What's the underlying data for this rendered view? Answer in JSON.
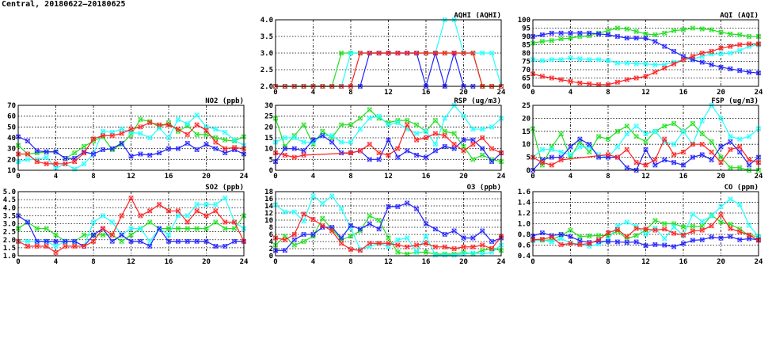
{
  "page_title": "Central, 20180622–20180625",
  "series_colors": [
    "#ff2020",
    "#20e020",
    "#2020ff",
    "#20ffff"
  ],
  "chart_data": [
    {
      "id": "aqhi",
      "type": "line",
      "title": "AQHI (AQHI)",
      "ylim": [
        2,
        4
      ],
      "yticks": [
        "2.0",
        "2.5",
        "3.0",
        "3.5",
        "4.0"
      ],
      "xlim": [
        0,
        24
      ],
      "xticks": [
        "0",
        "4",
        "8",
        "12",
        "16",
        "20",
        "24"
      ],
      "grid": true,
      "series": [
        {
          "name": "green",
          "values": [
            2,
            2,
            2,
            2,
            2,
            2,
            2,
            3,
            3,
            3,
            3,
            3,
            3,
            3,
            3,
            3,
            3,
            3,
            3,
            3,
            3,
            3,
            2,
            2,
            2
          ]
        },
        {
          "name": "cyan",
          "values": [
            2,
            2,
            2,
            2,
            2,
            2,
            2,
            2,
            3,
            3,
            3,
            3,
            3,
            3,
            3,
            3,
            3,
            3,
            4,
            4,
            3,
            3,
            3,
            3,
            2
          ]
        },
        {
          "name": "blue",
          "values": [
            null,
            null,
            null,
            null,
            null,
            null,
            null,
            null,
            null,
            2,
            3,
            3,
            3,
            3,
            3,
            3,
            2,
            3,
            2,
            3,
            2,
            2,
            null,
            null,
            null
          ]
        },
        {
          "name": "red",
          "values": [
            2,
            2,
            2,
            2,
            2,
            2,
            2,
            2,
            2,
            3,
            3,
            3,
            3,
            3,
            3,
            3,
            3,
            3,
            3,
            3,
            3,
            3,
            2,
            2,
            2
          ]
        }
      ]
    },
    {
      "id": "aqi",
      "type": "line",
      "title": "AQI (AQI)",
      "ylim": [
        60,
        100
      ],
      "yticks": [
        "60",
        "65",
        "70",
        "75",
        "80",
        "85",
        "90",
        "95",
        "100"
      ],
      "xlim": [
        0,
        24
      ],
      "xticks": [
        "0",
        "4",
        "8",
        "12",
        "16",
        "20",
        "24"
      ],
      "grid": true,
      "series": [
        {
          "name": "green",
          "values": [
            86,
            87,
            87.5,
            88.5,
            89,
            90,
            90.5,
            92,
            93.5,
            95,
            94.5,
            93,
            91.5,
            91,
            92,
            93.5,
            94,
            95,
            94.5,
            94,
            92.5,
            91.5,
            91,
            90,
            90
          ]
        },
        {
          "name": "cyan",
          "values": [
            76,
            75.5,
            76,
            76,
            77,
            76.5,
            76,
            76,
            75.5,
            74,
            74,
            73.5,
            73.5,
            73,
            73,
            74.5,
            76,
            76.5,
            78,
            79.5,
            79.5,
            80,
            81.5,
            84,
            85
          ]
        },
        {
          "name": "blue",
          "values": [
            90,
            91,
            92,
            92,
            92,
            92,
            92,
            91.5,
            91,
            90,
            89,
            89,
            89,
            87,
            84,
            81,
            78,
            76,
            74.5,
            73,
            71.5,
            70.5,
            69.5,
            68.5,
            68
          ]
        },
        {
          "name": "red",
          "values": [
            67.5,
            66,
            65,
            64,
            63,
            62,
            61.5,
            61,
            61,
            62.5,
            64,
            65,
            66,
            68.5,
            71,
            73.5,
            76,
            78,
            80,
            81,
            83,
            84,
            85,
            85.5,
            85.5
          ]
        }
      ]
    },
    {
      "id": "no2",
      "type": "line",
      "title": "NO2 (ppb)",
      "ylim": [
        10,
        70
      ],
      "yticks": [
        "10",
        "20",
        "30",
        "40",
        "50",
        "60",
        "70"
      ],
      "xlim": [
        0,
        24
      ],
      "xticks": [
        "0",
        "4",
        "8",
        "12",
        "16",
        "20",
        "24"
      ],
      "grid": true,
      "series": [
        {
          "name": "green",
          "values": [
            33,
            25,
            26,
            27,
            27,
            21,
            26,
            32,
            37,
            41,
            29,
            34,
            43,
            57,
            55,
            50,
            54,
            46,
            51,
            43,
            43,
            40,
            38,
            37,
            41
          ]
        },
        {
          "name": "cyan",
          "values": [
            18,
            20,
            20,
            22,
            12,
            16,
            11,
            16,
            25,
            46,
            45,
            48,
            45,
            44,
            40,
            49,
            40,
            57,
            53,
            61,
            50,
            48,
            45,
            38,
            33
          ]
        },
        {
          "name": "blue",
          "values": [
            41,
            37,
            28,
            27,
            27,
            21,
            21,
            27,
            25,
            29,
            30,
            35,
            23,
            25,
            24,
            26,
            30,
            30,
            35,
            29,
            34,
            30,
            26,
            29,
            25
          ]
        },
        {
          "name": "red",
          "values": [
            25,
            25,
            18,
            16,
            16,
            16,
            18,
            26,
            39,
            42,
            42,
            44,
            48,
            50,
            54,
            52,
            52,
            48,
            43,
            52,
            47,
            36,
            30,
            31,
            30
          ]
        }
      ]
    },
    {
      "id": "rsp",
      "type": "line",
      "title": "RSP (ug/m3)",
      "ylim": [
        0,
        30
      ],
      "yticks": [
        "0",
        "5",
        "10",
        "15",
        "20",
        "25",
        "30"
      ],
      "xlim": [
        0,
        24
      ],
      "xticks": [
        "0",
        "4",
        "8",
        "12",
        "16",
        "20",
        "24"
      ],
      "grid": true,
      "series": [
        {
          "name": "green",
          "values": [
            24,
            11,
            16,
            21,
            12,
            18,
            15,
            21,
            21,
            24,
            28,
            24,
            22,
            23,
            23,
            21,
            18,
            23,
            18,
            17,
            11,
            5,
            7,
            5,
            4
          ]
        },
        {
          "name": "cyan",
          "values": [
            13,
            15,
            15,
            13,
            13,
            16,
            16,
            13,
            13,
            19,
            24,
            25,
            21,
            22,
            19,
            17,
            18,
            12,
            24,
            30,
            25,
            19,
            19,
            20,
            24
          ]
        },
        {
          "name": "blue",
          "values": [
            4,
            10,
            10,
            9,
            14,
            16,
            13,
            8,
            8,
            9,
            5,
            5,
            14,
            6,
            9,
            7,
            6,
            9,
            11,
            10,
            14,
            14,
            10,
            4,
            8
          ]
        },
        {
          "name": "red",
          "values": [
            8,
            7,
            6,
            7,
            null,
            null,
            null,
            null,
            8,
            9,
            12,
            8,
            7,
            10,
            21,
            14,
            15,
            17,
            16,
            12,
            9,
            12,
            15,
            10,
            8
          ]
        }
      ]
    },
    {
      "id": "fsp",
      "type": "line",
      "title": "FSP (ug/m3)",
      "ylim": [
        0,
        25
      ],
      "yticks": [
        "0",
        "5",
        "10",
        "15",
        "20",
        "25"
      ],
      "xlim": [
        0,
        24
      ],
      "xticks": [
        "0",
        "4",
        "8",
        "12",
        "16",
        "20",
        "24"
      ],
      "grid": true,
      "series": [
        {
          "name": "green",
          "values": [
            16,
            2,
            9,
            14,
            5,
            11,
            7,
            13,
            12,
            15,
            17,
            13,
            11,
            15,
            17,
            18,
            15,
            18,
            14,
            11,
            5,
            1,
            1,
            0,
            0
          ]
        },
        {
          "name": "cyan",
          "values": [
            5,
            8,
            8,
            7,
            6,
            9,
            9,
            6,
            5,
            9,
            14,
            17,
            14,
            15,
            11,
            10,
            15,
            10,
            19,
            25,
            20,
            13,
            12,
            13,
            16
          ]
        },
        {
          "name": "blue",
          "values": [
            0,
            4,
            5,
            5,
            9,
            12,
            10,
            5,
            5,
            5,
            1,
            0,
            8,
            2,
            4,
            3,
            2,
            5,
            6,
            4,
            9,
            11,
            7,
            2,
            5
          ]
        },
        {
          "name": "red",
          "values": [
            5,
            3,
            2,
            4,
            null,
            null,
            null,
            null,
            6,
            5,
            8,
            3,
            2,
            4,
            12,
            6,
            7,
            10,
            10,
            7,
            3,
            8,
            9,
            4,
            3
          ]
        }
      ]
    },
    {
      "id": "so2",
      "type": "line",
      "title": "SO2 (ppb)",
      "ylim": [
        1,
        5
      ],
      "yticks": [
        "1.0",
        "1.5",
        "2.0",
        "2.5",
        "3.0",
        "3.5",
        "4.0",
        "4.5",
        "5.0"
      ],
      "xlim": [
        0,
        24
      ],
      "xticks": [
        "0",
        "4",
        "8",
        "12",
        "16",
        "20",
        "24"
      ],
      "grid": true,
      "series": [
        {
          "name": "green",
          "values": [
            2.7,
            3.1,
            2.7,
            2.7,
            2.3,
            1.9,
            1.9,
            2.3,
            2.3,
            2.3,
            2.3,
            1.9,
            2.3,
            2.7,
            3.1,
            2.7,
            2.7,
            2.7,
            2.7,
            2.7,
            2.7,
            3.1,
            2.7,
            2.7,
            3.5
          ]
        },
        {
          "name": "cyan",
          "values": [
            1.9,
            1.9,
            1.9,
            1.9,
            1.6,
            1.9,
            1.9,
            1.6,
            3.1,
            3.5,
            3.1,
            2.3,
            2.7,
            2.7,
            1.9,
            2.7,
            2.3,
            3.5,
            3.5,
            4.2,
            4.2,
            4.2,
            4.6,
            3.1,
            2.7
          ]
        },
        {
          "name": "blue",
          "values": [
            3.5,
            3.1,
            1.9,
            1.9,
            1.9,
            1.9,
            1.9,
            1.6,
            2.3,
            2.7,
            1.9,
            2.3,
            1.9,
            1.9,
            1.6,
            2.7,
            1.9,
            1.9,
            1.9,
            1.9,
            1.9,
            1.6,
            1.6,
            1.9,
            1.9
          ]
        },
        {
          "name": "red",
          "values": [
            1.9,
            1.6,
            1.6,
            1.6,
            1.2,
            1.6,
            1.6,
            1.6,
            1.9,
            2.7,
            2.3,
            3.5,
            4.6,
            3.5,
            3.8,
            4.2,
            3.8,
            3.8,
            3.1,
            3.8,
            3.5,
            3.8,
            3.1,
            3.1,
            1.9
          ]
        }
      ]
    },
    {
      "id": "o3",
      "type": "line",
      "title": "O3 (ppb)",
      "ylim": [
        0,
        18
      ],
      "yticks": [
        "0",
        "2",
        "4",
        "6",
        "8",
        "10",
        "12",
        "14",
        "16",
        "18"
      ],
      "xlim": [
        0,
        24
      ],
      "xticks": [
        "0",
        "4",
        "8",
        "12",
        "16",
        "20",
        "24"
      ],
      "grid": true,
      "series": [
        {
          "name": "green",
          "values": [
            3,
            5.5,
            3,
            4,
            5.5,
            10.5,
            7.5,
            4.5,
            5.5,
            7,
            11.2,
            10,
            5,
            1,
            0.5,
            1,
            1,
            0.5,
            0.5,
            0.5,
            1,
            0.5,
            1.5,
            2,
            1.5
          ]
        },
        {
          "name": "cyan",
          "values": [
            14.3,
            12.3,
            12.3,
            9.7,
            16.8,
            14.7,
            16.8,
            13.2,
            7.8,
            1.8,
            2.6,
            3.5,
            2.6,
            4.5,
            5,
            1,
            5.5,
            0.2,
            0.2,
            0.2,
            0.5,
            0.8,
            0.5,
            1,
            3
          ]
        },
        {
          "name": "blue",
          "values": [
            1.5,
            1.5,
            4.5,
            6,
            6,
            8,
            8,
            5,
            8.5,
            7.5,
            9,
            7.5,
            13.8,
            13.8,
            14.8,
            13.2,
            9,
            7.5,
            6,
            7,
            5,
            5,
            7,
            4,
            5
          ]
        },
        {
          "name": "red",
          "values": [
            5,
            4.5,
            6,
            11.7,
            10.2,
            8.5,
            7,
            3.5,
            1.8,
            1.5,
            3.5,
            3.5,
            3.5,
            3,
            2.5,
            3,
            3.5,
            2.5,
            2.5,
            2,
            2.5,
            2.5,
            3,
            2,
            5.5
          ]
        }
      ]
    },
    {
      "id": "co",
      "type": "line",
      "title": "CO (ppm)",
      "ylim": [
        0.4,
        1.6
      ],
      "yticks": [
        "0.4",
        "0.6",
        "0.8",
        "1.0",
        "1.2",
        "1.4",
        "1.6"
      ],
      "xlim": [
        0,
        24
      ],
      "xticks": [
        "0",
        "4",
        "8",
        "12",
        "16",
        "20",
        "24"
      ],
      "grid": true,
      "series": [
        {
          "name": "green",
          "values": [
            0.7,
            0.69,
            0.7,
            0.78,
            0.88,
            0.76,
            0.77,
            0.78,
            0.78,
            0.86,
            0.72,
            0.78,
            0.88,
            1.06,
            1.0,
            1.0,
            0.94,
            0.95,
            0.95,
            1.16,
            1.03,
            0.99,
            0.9,
            0.78,
            0.76
          ]
        },
        {
          "name": "cyan",
          "values": [
            0.68,
            0.7,
            0.66,
            0.72,
            0.64,
            0.62,
            0.58,
            0.62,
            0.7,
            0.96,
            1.03,
            0.95,
            0.8,
            0.92,
            0.72,
            0.94,
            0.78,
            1.18,
            1.04,
            1.15,
            1.32,
            1.46,
            1.36,
            0.97,
            0.76
          ]
        },
        {
          "name": "blue",
          "values": [
            0.77,
            0.83,
            0.78,
            0.8,
            0.76,
            0.68,
            0.65,
            0.67,
            0.67,
            0.66,
            0.65,
            0.66,
            0.59,
            0.61,
            0.6,
            0.57,
            0.63,
            0.69,
            0.7,
            0.75,
            0.73,
            0.76,
            0.7,
            0.72,
            0.7
          ]
        },
        {
          "name": "red",
          "values": [
            0.7,
            0.71,
            0.75,
            0.61,
            0.63,
            0.61,
            0.63,
            0.7,
            0.83,
            0.89,
            0.76,
            0.91,
            0.9,
            0.88,
            0.9,
            0.82,
            0.79,
            0.86,
            0.88,
            0.96,
            1.17,
            0.91,
            0.85,
            0.79,
            0.69
          ]
        }
      ]
    }
  ]
}
